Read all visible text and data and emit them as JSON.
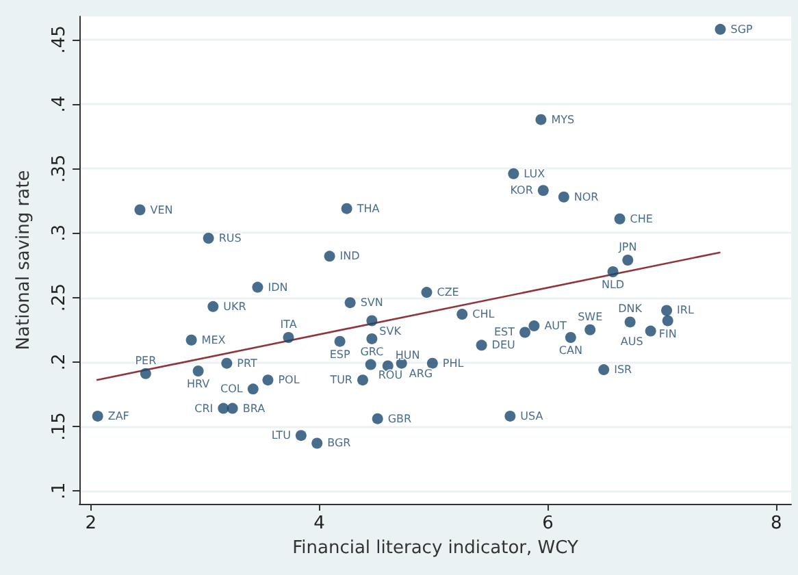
{
  "chart_data": {
    "type": "scatter",
    "xlabel": "Financial literacy indicator, WCY",
    "ylabel": "National saving rate",
    "xlim": [
      1.9,
      8.13
    ],
    "xticks": [
      2,
      4,
      6,
      8
    ],
    "ylim": [
      0.09,
      0.468
    ],
    "yticks": [
      {
        "value": 0.1,
        "label": ".1"
      },
      {
        "value": 0.15,
        "label": ".15"
      },
      {
        "value": 0.2,
        "label": ".2"
      },
      {
        "value": 0.25,
        "label": ".25"
      },
      {
        "value": 0.3,
        "label": ".3"
      },
      {
        "value": 0.35,
        "label": ".35"
      },
      {
        "value": 0.4,
        "label": ".4"
      },
      {
        "value": 0.45,
        "label": ".45"
      }
    ],
    "grid": "y",
    "marker": "circle",
    "series": [
      {
        "color": "#1a476f",
        "x": [
          7.51,
          5.94,
          5.7,
          5.96,
          6.14,
          6.63,
          6.7,
          6.57,
          2.43,
          4.24,
          3.03,
          4.09,
          3.46,
          3.07,
          4.27,
          4.94,
          4.46,
          2.88,
          3.73,
          4.18,
          4.46,
          5.25,
          5.88,
          5.8,
          6.2,
          6.37,
          6.72,
          7.04,
          7.05,
          6.9,
          5.42,
          3.19,
          2.48,
          2.94,
          4.45,
          4.6,
          4.72,
          4.99,
          3.55,
          3.42,
          4.38,
          2.06,
          3.16,
          3.24,
          4.51,
          3.84,
          3.98,
          6.49,
          5.67
        ],
        "values": [
          0.458,
          0.388,
          0.346,
          0.333,
          0.328,
          0.311,
          0.279,
          0.27,
          0.318,
          0.319,
          0.296,
          0.282,
          0.258,
          0.243,
          0.246,
          0.254,
          0.232,
          0.217,
          0.219,
          0.216,
          0.218,
          0.237,
          0.228,
          0.223,
          0.219,
          0.225,
          0.231,
          0.24,
          0.232,
          0.224,
          0.213,
          0.199,
          0.191,
          0.193,
          0.198,
          0.197,
          0.199,
          0.199,
          0.186,
          0.179,
          0.186,
          0.158,
          0.164,
          0.164,
          0.156,
          0.143,
          0.137,
          0.194,
          0.158
        ],
        "value_labels": [
          "SGP",
          "MYS",
          "LUX",
          "KOR",
          "NOR",
          "CHE",
          "JPN",
          "NLD",
          "VEN",
          "THA",
          "RUS",
          "IND",
          "IDN",
          "UKR",
          "SVN",
          "CZE",
          "SVK",
          "MEX",
          "ITA",
          "ESP",
          "GRC",
          "CHL",
          "AUT",
          "EST",
          "CAN",
          "SWE",
          "DNK",
          "IRL",
          "FIN",
          "AUS",
          "DEU",
          "PRT",
          "PER",
          "HRV",
          "ROU",
          "HUN",
          "ARG",
          "PHL",
          "POL",
          "COL",
          "TUR",
          "ZAF",
          "CRI",
          "BRA",
          "GBR",
          "LTU",
          "BGR",
          "ISR",
          "USA"
        ]
      },
      {
        "type": "line",
        "marker": "none",
        "color": "#90353b",
        "x": [
          2.05,
          7.51
        ],
        "values": [
          0.186,
          0.285
        ]
      }
    ]
  }
}
